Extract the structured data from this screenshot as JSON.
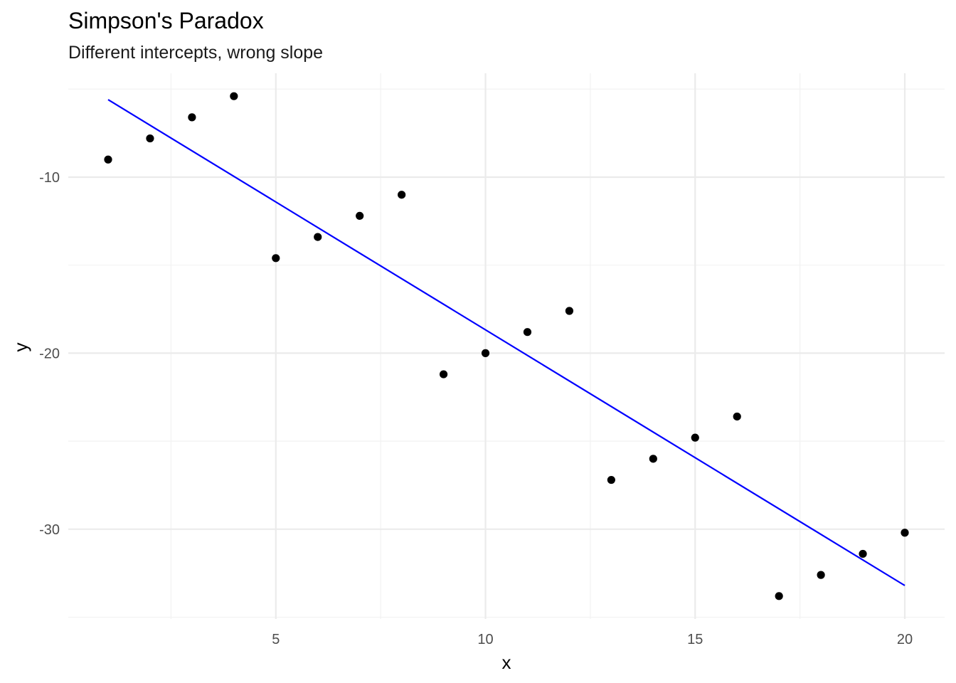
{
  "chart_data": {
    "type": "scatter",
    "title": "Simpson's Paradox",
    "subtitle": "Different intercepts, wrong slope",
    "xlabel": "x",
    "ylabel": "y",
    "xlim": [
      0.05,
      20.95
    ],
    "ylim": [
      -35.1,
      -4.1
    ],
    "x_ticks": [
      5,
      10,
      15,
      20
    ],
    "y_ticks": [
      -10,
      -20,
      -30
    ],
    "x_tick_labels": [
      "5",
      "10",
      "15",
      "20"
    ],
    "y_tick_labels": [
      "-10",
      "-20",
      "-30"
    ],
    "grid": true,
    "legend": "none",
    "points": {
      "x": [
        1,
        2,
        3,
        4,
        5,
        6,
        7,
        8,
        9,
        10,
        11,
        12,
        13,
        14,
        15,
        16,
        17,
        18,
        19,
        20
      ],
      "y": [
        -9.0,
        -7.8,
        -6.6,
        -5.4,
        -14.6,
        -13.4,
        -12.2,
        -11.0,
        -21.2,
        -20.0,
        -18.8,
        -17.6,
        -27.2,
        -26.0,
        -24.8,
        -23.6,
        -33.8,
        -32.6,
        -31.4,
        -30.2
      ],
      "color": "#000000"
    },
    "fit_line": {
      "x": [
        1,
        20
      ],
      "y": [
        -5.6,
        -33.2
      ],
      "color": "#0000ff"
    }
  }
}
